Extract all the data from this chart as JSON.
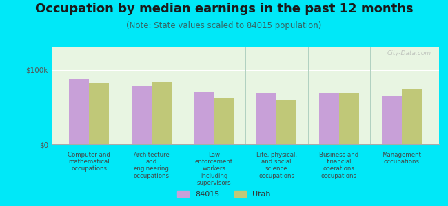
{
  "title": "Occupation by median earnings in the past 12 months",
  "subtitle": "(Note: State values scaled to 84015 population)",
  "background_color": "#00e8f8",
  "plot_bg_color": "#e8f5e2",
  "categories": [
    "Computer and\nmathematical\noccupations",
    "Architecture\nand\nengineering\noccupations",
    "Law\nenforcement\nworkers\nincluding\nsupervisors",
    "Life, physical,\nand social\nscience\noccupations",
    "Business and\nfinancial\noperations\noccupations",
    "Management\noccupations"
  ],
  "values_84015": [
    88000,
    78000,
    70000,
    68000,
    68000,
    65000
  ],
  "values_utah": [
    82000,
    84000,
    62000,
    60000,
    68000,
    74000
  ],
  "color_84015": "#c8a0d8",
  "color_utah": "#c0c878",
  "ylim": [
    0,
    130000
  ],
  "yticks": [
    0,
    100000
  ],
  "ytick_labels": [
    "$0",
    "$100k"
  ],
  "legend_labels": [
    "84015",
    "Utah"
  ],
  "bar_width": 0.32,
  "title_fontsize": 13,
  "subtitle_fontsize": 8.5,
  "watermark": "City-Data.com",
  "title_color": "#1a1a1a",
  "subtitle_color": "#336666",
  "axis_label_color": "#444444",
  "ytick_color": "#555555"
}
